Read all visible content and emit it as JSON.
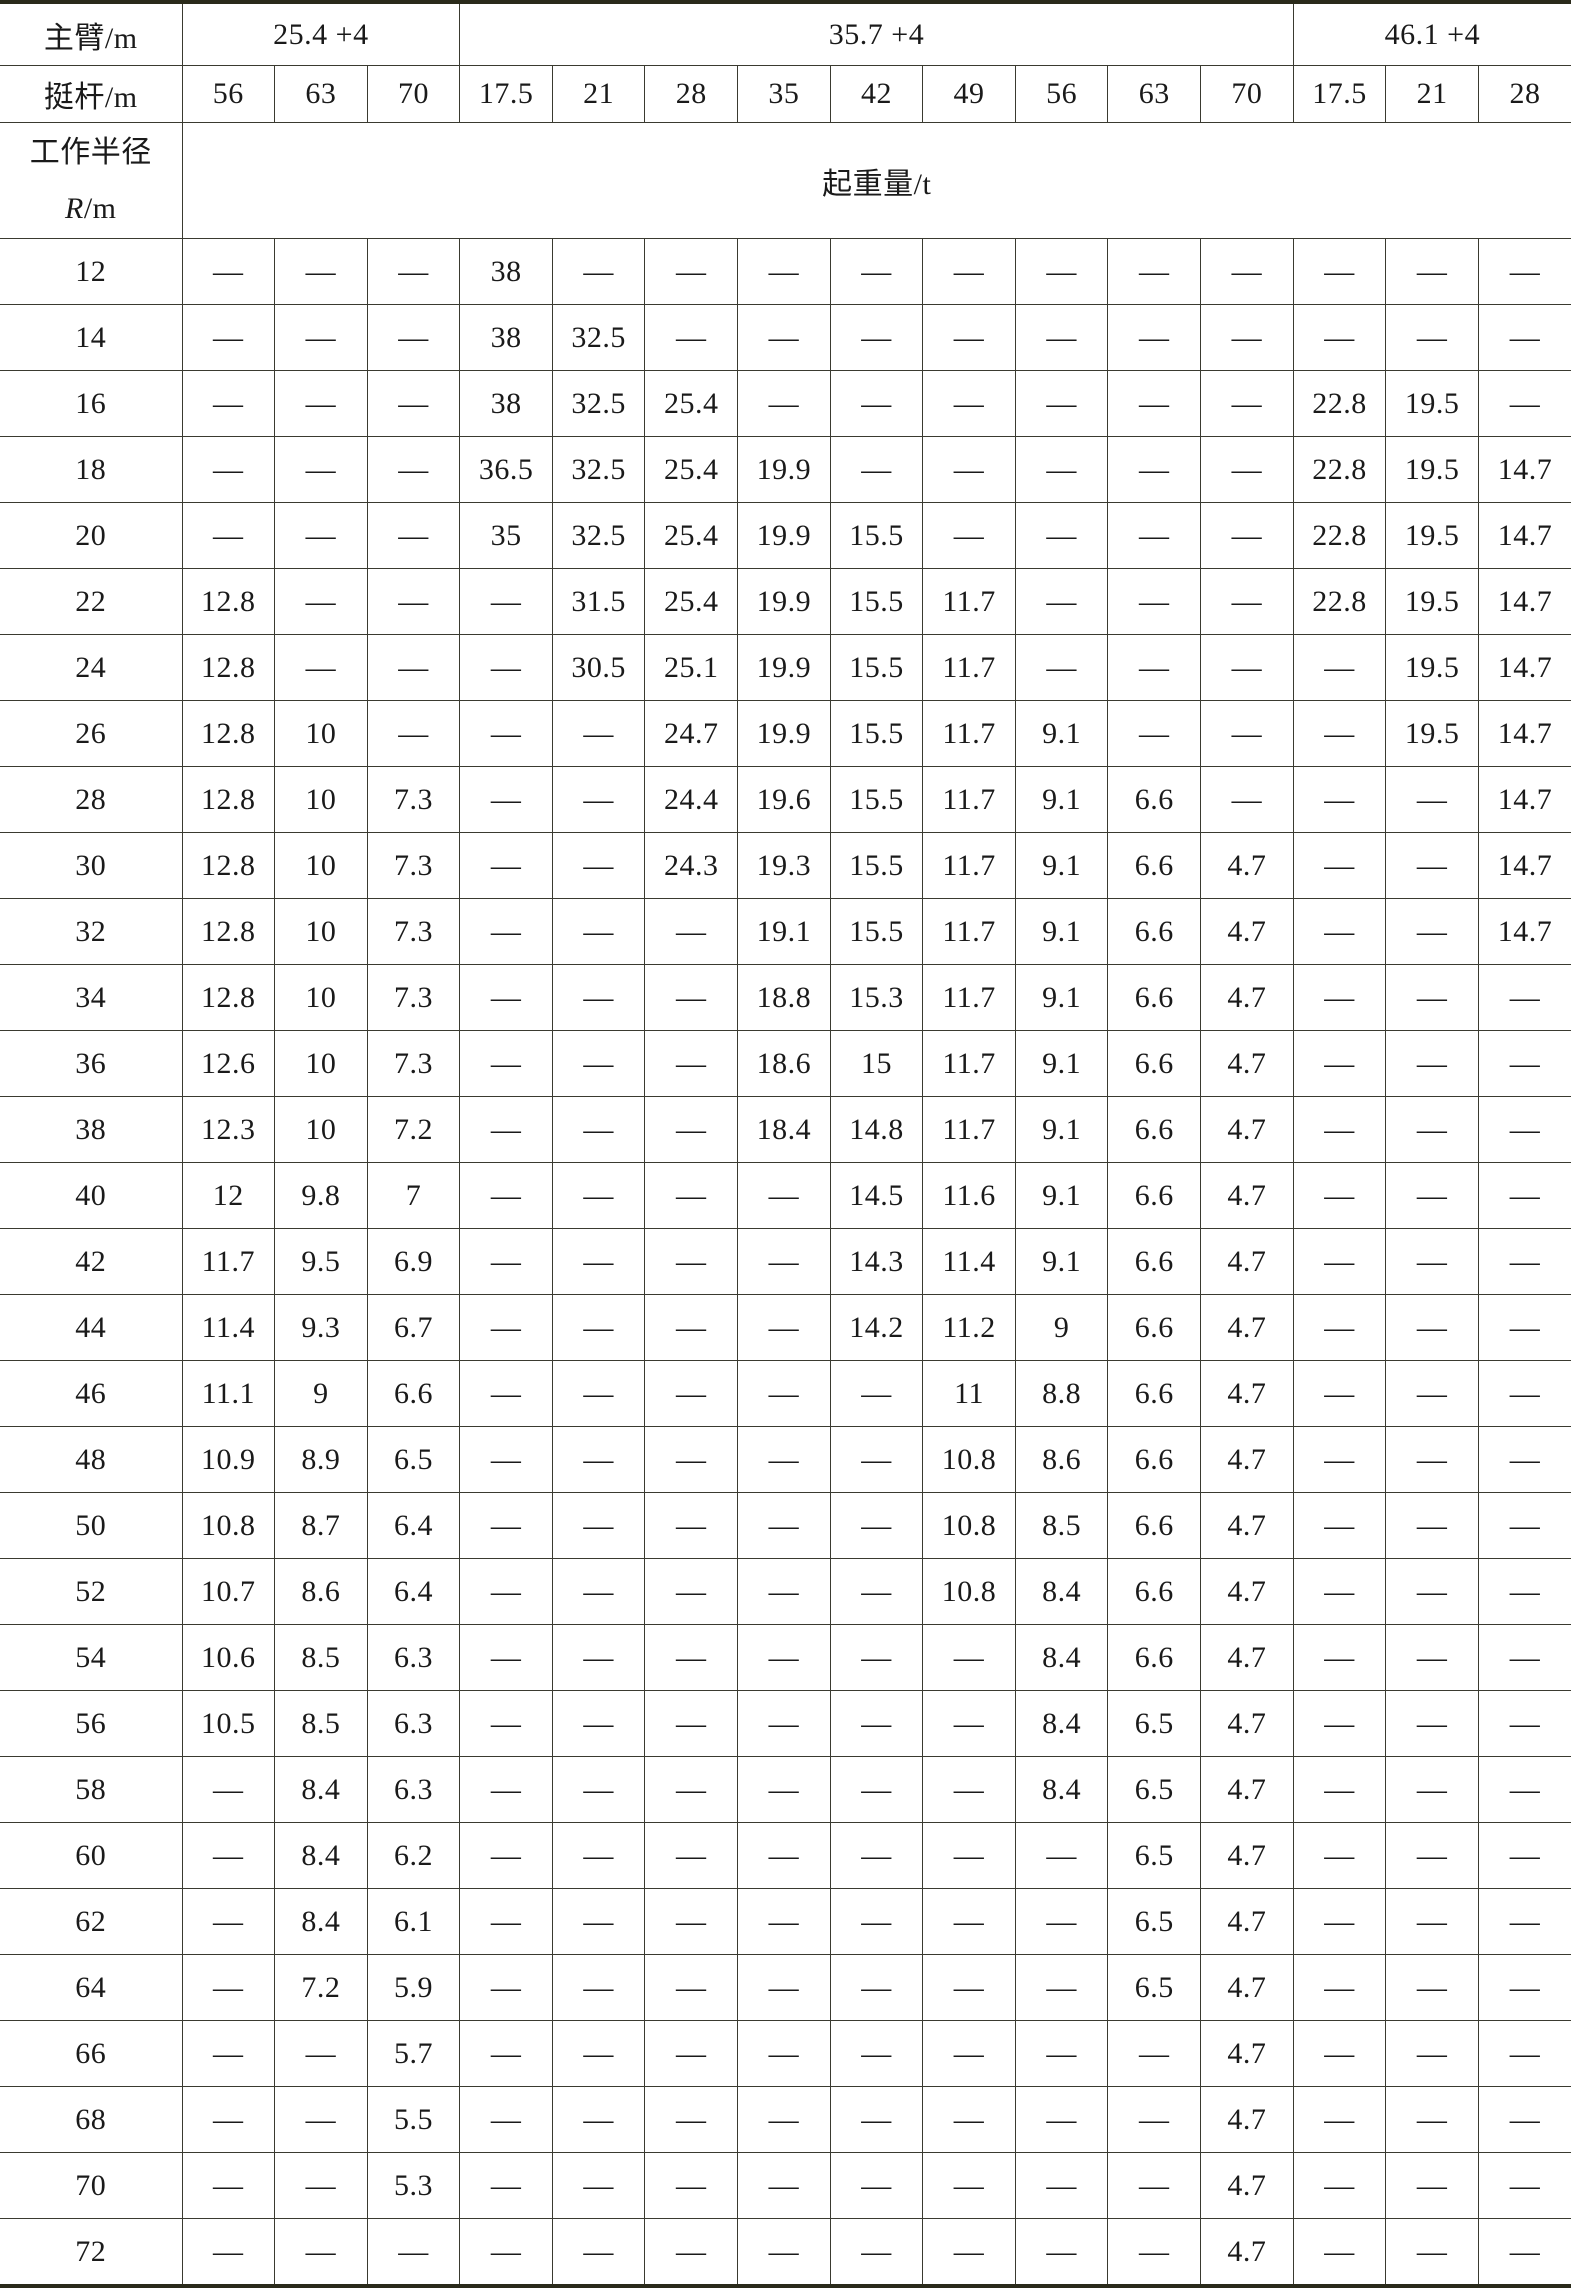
{
  "header": {
    "boom_label": "主臂/m",
    "boom_groups": [
      "25.4 +4",
      "35.7 +4",
      "46.1 +4"
    ],
    "jib_label": "挺杆/m",
    "jibs": [
      "56",
      "63",
      "70",
      "17.5",
      "21",
      "28",
      "35",
      "42",
      "49",
      "56",
      "63",
      "70",
      "17.5",
      "21",
      "28"
    ],
    "radius_label_line1": "工作半径",
    "radius_label_var": "R",
    "radius_label_unit": "/m",
    "capacity_label": "起重量/t"
  },
  "rows": [
    [
      "12",
      "—",
      "—",
      "—",
      "38",
      "—",
      "—",
      "—",
      "—",
      "—",
      "—",
      "—",
      "—",
      "—",
      "—",
      "—"
    ],
    [
      "14",
      "—",
      "—",
      "—",
      "38",
      "32.5",
      "—",
      "—",
      "—",
      "—",
      "—",
      "—",
      "—",
      "—",
      "—",
      "—"
    ],
    [
      "16",
      "—",
      "—",
      "—",
      "38",
      "32.5",
      "25.4",
      "—",
      "—",
      "—",
      "—",
      "—",
      "—",
      "22.8",
      "19.5",
      "—"
    ],
    [
      "18",
      "—",
      "—",
      "—",
      "36.5",
      "32.5",
      "25.4",
      "19.9",
      "—",
      "—",
      "—",
      "—",
      "—",
      "22.8",
      "19.5",
      "14.7"
    ],
    [
      "20",
      "—",
      "—",
      "—",
      "35",
      "32.5",
      "25.4",
      "19.9",
      "15.5",
      "—",
      "—",
      "—",
      "—",
      "22.8",
      "19.5",
      "14.7"
    ],
    [
      "22",
      "12.8",
      "—",
      "—",
      "—",
      "31.5",
      "25.4",
      "19.9",
      "15.5",
      "11.7",
      "—",
      "—",
      "—",
      "22.8",
      "19.5",
      "14.7"
    ],
    [
      "24",
      "12.8",
      "—",
      "—",
      "—",
      "30.5",
      "25.1",
      "19.9",
      "15.5",
      "11.7",
      "—",
      "—",
      "—",
      "—",
      "19.5",
      "14.7"
    ],
    [
      "26",
      "12.8",
      "10",
      "—",
      "—",
      "—",
      "24.7",
      "19.9",
      "15.5",
      "11.7",
      "9.1",
      "—",
      "—",
      "—",
      "19.5",
      "14.7"
    ],
    [
      "28",
      "12.8",
      "10",
      "7.3",
      "—",
      "—",
      "24.4",
      "19.6",
      "15.5",
      "11.7",
      "9.1",
      "6.6",
      "—",
      "—",
      "—",
      "14.7"
    ],
    [
      "30",
      "12.8",
      "10",
      "7.3",
      "—",
      "—",
      "24.3",
      "19.3",
      "15.5",
      "11.7",
      "9.1",
      "6.6",
      "4.7",
      "—",
      "—",
      "14.7"
    ],
    [
      "32",
      "12.8",
      "10",
      "7.3",
      "—",
      "—",
      "—",
      "19.1",
      "15.5",
      "11.7",
      "9.1",
      "6.6",
      "4.7",
      "—",
      "—",
      "14.7"
    ],
    [
      "34",
      "12.8",
      "10",
      "7.3",
      "—",
      "—",
      "—",
      "18.8",
      "15.3",
      "11.7",
      "9.1",
      "6.6",
      "4.7",
      "—",
      "—",
      "—"
    ],
    [
      "36",
      "12.6",
      "10",
      "7.3",
      "—",
      "—",
      "—",
      "18.6",
      "15",
      "11.7",
      "9.1",
      "6.6",
      "4.7",
      "—",
      "—",
      "—"
    ],
    [
      "38",
      "12.3",
      "10",
      "7.2",
      "—",
      "—",
      "—",
      "18.4",
      "14.8",
      "11.7",
      "9.1",
      "6.6",
      "4.7",
      "—",
      "—",
      "—"
    ],
    [
      "40",
      "12",
      "9.8",
      "7",
      "—",
      "—",
      "—",
      "—",
      "14.5",
      "11.6",
      "9.1",
      "6.6",
      "4.7",
      "—",
      "—",
      "—"
    ],
    [
      "42",
      "11.7",
      "9.5",
      "6.9",
      "—",
      "—",
      "—",
      "—",
      "14.3",
      "11.4",
      "9.1",
      "6.6",
      "4.7",
      "—",
      "—",
      "—"
    ],
    [
      "44",
      "11.4",
      "9.3",
      "6.7",
      "—",
      "—",
      "—",
      "—",
      "14.2",
      "11.2",
      "9",
      "6.6",
      "4.7",
      "—",
      "—",
      "—"
    ],
    [
      "46",
      "11.1",
      "9",
      "6.6",
      "—",
      "—",
      "—",
      "—",
      "—",
      "11",
      "8.8",
      "6.6",
      "4.7",
      "—",
      "—",
      "—"
    ],
    [
      "48",
      "10.9",
      "8.9",
      "6.5",
      "—",
      "—",
      "—",
      "—",
      "—",
      "10.8",
      "8.6",
      "6.6",
      "4.7",
      "—",
      "—",
      "—"
    ],
    [
      "50",
      "10.8",
      "8.7",
      "6.4",
      "—",
      "—",
      "—",
      "—",
      "—",
      "10.8",
      "8.5",
      "6.6",
      "4.7",
      "—",
      "—",
      "—"
    ],
    [
      "52",
      "10.7",
      "8.6",
      "6.4",
      "—",
      "—",
      "—",
      "—",
      "—",
      "10.8",
      "8.4",
      "6.6",
      "4.7",
      "—",
      "—",
      "—"
    ],
    [
      "54",
      "10.6",
      "8.5",
      "6.3",
      "—",
      "—",
      "—",
      "—",
      "—",
      "—",
      "8.4",
      "6.6",
      "4.7",
      "—",
      "—",
      "—"
    ],
    [
      "56",
      "10.5",
      "8.5",
      "6.3",
      "—",
      "—",
      "—",
      "—",
      "—",
      "—",
      "8.4",
      "6.5",
      "4.7",
      "—",
      "—",
      "—"
    ],
    [
      "58",
      "—",
      "8.4",
      "6.3",
      "—",
      "—",
      "—",
      "—",
      "—",
      "—",
      "8.4",
      "6.5",
      "4.7",
      "—",
      "—",
      "—"
    ],
    [
      "60",
      "—",
      "8.4",
      "6.2",
      "—",
      "—",
      "—",
      "—",
      "—",
      "—",
      "—",
      "6.5",
      "4.7",
      "—",
      "—",
      "—"
    ],
    [
      "62",
      "—",
      "8.4",
      "6.1",
      "—",
      "—",
      "—",
      "—",
      "—",
      "—",
      "—",
      "6.5",
      "4.7",
      "—",
      "—",
      "—"
    ],
    [
      "64",
      "—",
      "7.2",
      "5.9",
      "—",
      "—",
      "—",
      "—",
      "—",
      "—",
      "—",
      "6.5",
      "4.7",
      "—",
      "—",
      "—"
    ],
    [
      "66",
      "—",
      "—",
      "5.7",
      "—",
      "—",
      "—",
      "—",
      "—",
      "—",
      "—",
      "—",
      "4.7",
      "—",
      "—",
      "—"
    ],
    [
      "68",
      "—",
      "—",
      "5.5",
      "—",
      "—",
      "—",
      "—",
      "—",
      "—",
      "—",
      "—",
      "4.7",
      "—",
      "—",
      "—"
    ],
    [
      "70",
      "—",
      "—",
      "5.3",
      "—",
      "—",
      "—",
      "—",
      "—",
      "—",
      "—",
      "—",
      "4.7",
      "—",
      "—",
      "—"
    ],
    [
      "72",
      "—",
      "—",
      "—",
      "—",
      "—",
      "—",
      "—",
      "—",
      "—",
      "—",
      "—",
      "4.7",
      "—",
      "—",
      "—"
    ]
  ]
}
